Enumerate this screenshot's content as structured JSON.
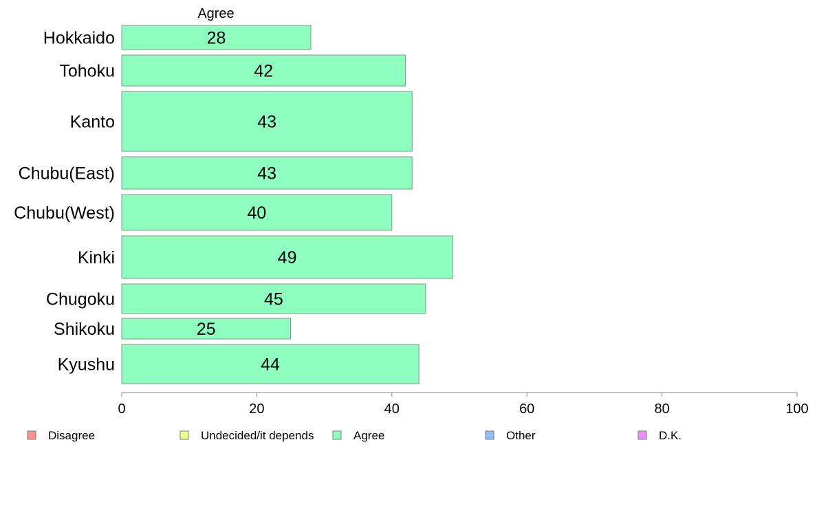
{
  "chart_data": {
    "type": "bar",
    "orientation": "horizontal",
    "title": "Agree",
    "categories": [
      "Hokkaido",
      "Tohoku",
      "Kanto",
      "Chubu(East)",
      "Chubu(West)",
      "Kinki",
      "Chugoku",
      "Shikoku",
      "Kyushu"
    ],
    "series": [
      {
        "name": "Agree",
        "values": [
          28,
          42,
          43,
          43,
          40,
          49,
          45,
          25,
          44
        ],
        "color": "#8effbe"
      }
    ],
    "xlim": [
      0,
      100
    ],
    "xticks": [
      0,
      20,
      40,
      60,
      80,
      100
    ],
    "grid": false,
    "legend_position": "bottom",
    "legend": [
      {
        "label": "Disagree",
        "color": "#ff8e8e"
      },
      {
        "label": "Undecided/it depends",
        "color": "#eeff8e"
      },
      {
        "label": "Agree",
        "color": "#8effbe"
      },
      {
        "label": "Other",
        "color": "#8ebeff"
      },
      {
        "label": "D.K.",
        "color": "#ee8eff"
      }
    ]
  }
}
